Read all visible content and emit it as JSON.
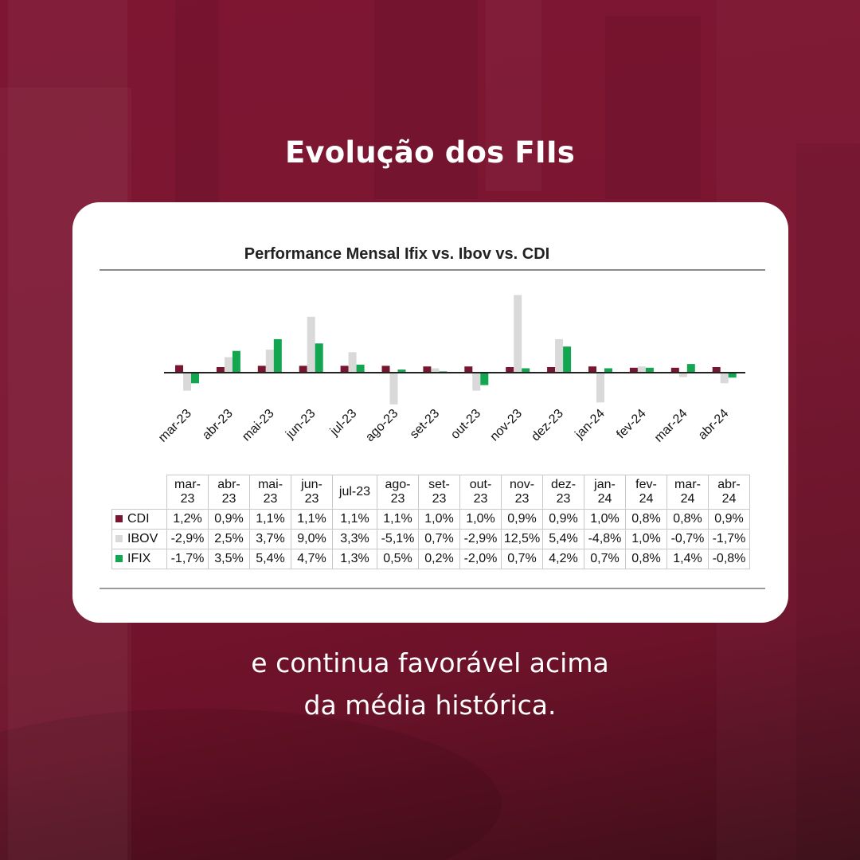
{
  "heading": "Evolução dos FIIs",
  "subtitle_line1": "e continua favorável acima",
  "subtitle_line2": "da média histórica.",
  "colors": {
    "background": "#7a1530",
    "cdi": "#7a1530",
    "ibov": "#d9d9d9",
    "ifix": "#12a650"
  },
  "chart_data": {
    "type": "bar",
    "title": "Performance Mensal Ifix vs. Ibov vs. CDI",
    "xlabel": "",
    "ylabel": "",
    "unit": "%",
    "categories": [
      "mar-23",
      "abr-23",
      "mai-23",
      "jun-23",
      "jul-23",
      "ago-23",
      "set-23",
      "out-23",
      "nov-23",
      "dez-23",
      "jan-24",
      "fev-24",
      "mar-24",
      "abr-24"
    ],
    "table_headers": [
      "mar-\n23",
      "abr-\n23",
      "mai-\n23",
      "jun-\n23",
      "jul-23",
      "ago-\n23",
      "set-\n23",
      "out-\n23",
      "nov-\n23",
      "dez-\n23",
      "jan-\n24",
      "fev-\n24",
      "mar-\n24",
      "abr-\n24"
    ],
    "series": [
      {
        "name": "CDI",
        "color": "#7a1530",
        "values": [
          1.2,
          0.9,
          1.1,
          1.1,
          1.1,
          1.1,
          1.0,
          1.0,
          0.9,
          0.9,
          1.0,
          0.8,
          0.8,
          0.9
        ],
        "labels": [
          "1,2%",
          "0,9%",
          "1,1%",
          "1,1%",
          "1,1%",
          "1,1%",
          "1,0%",
          "1,0%",
          "0,9%",
          "0,9%",
          "1,0%",
          "0,8%",
          "0,8%",
          "0,9%"
        ]
      },
      {
        "name": "IBOV",
        "color": "#d9d9d9",
        "values": [
          -2.9,
          2.5,
          3.7,
          9.0,
          3.3,
          -5.1,
          0.7,
          -2.9,
          12.5,
          5.4,
          -4.8,
          1.0,
          -0.7,
          -1.7
        ],
        "labels": [
          "-2,9%",
          "2,5%",
          "3,7%",
          "9,0%",
          "3,3%",
          "-5,1%",
          "0,7%",
          "-2,9%",
          "12,5%",
          "5,4%",
          "-4,8%",
          "1,0%",
          "-0,7%",
          "-1,7%"
        ]
      },
      {
        "name": "IFIX",
        "color": "#12a650",
        "values": [
          -1.7,
          3.5,
          5.4,
          4.7,
          1.3,
          0.5,
          0.2,
          -2.0,
          0.7,
          4.2,
          0.7,
          0.8,
          1.4,
          -0.8
        ],
        "labels": [
          "-1,7%",
          "3,5%",
          "5,4%",
          "4,7%",
          "1,3%",
          "0,5%",
          "0,2%",
          "-2,0%",
          "0,7%",
          "4,2%",
          "0,7%",
          "0,8%",
          "1,4%",
          "-0,8%"
        ]
      }
    ],
    "grid": false,
    "legend": "table"
  }
}
